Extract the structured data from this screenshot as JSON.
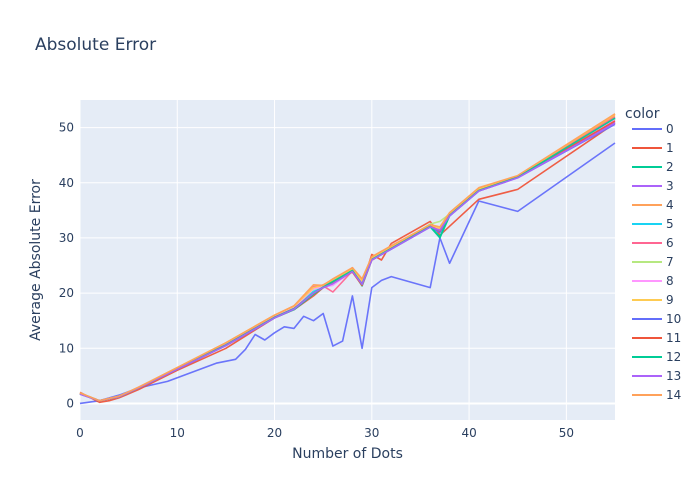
{
  "chart_data": {
    "type": "line",
    "title": "Absolute Error",
    "xlabel": "Number of Dots",
    "ylabel": "Average Absolute Error",
    "xlim": [
      0,
      55
    ],
    "ylim": [
      -3,
      55
    ],
    "xticks": [
      0,
      10,
      20,
      30,
      40,
      50
    ],
    "yticks": [
      0,
      10,
      20,
      30,
      40,
      50
    ],
    "grid": true,
    "legend": {
      "title": "color",
      "position": "right"
    },
    "series": [
      {
        "name": "0",
        "color": "#636efa",
        "x": [
          0,
          2,
          4,
          6,
          9,
          14,
          16,
          17,
          18,
          19,
          20,
          21,
          22,
          23,
          24,
          25,
          26,
          27,
          28,
          29,
          30,
          31,
          32,
          36,
          37,
          38,
          41,
          45,
          55
        ],
        "y": [
          0,
          0.5,
          1.5,
          2.8,
          4,
          7.3,
          8,
          9.8,
          12.5,
          11.5,
          12.8,
          13.9,
          13.6,
          15.8,
          15,
          16.3,
          10.4,
          11.3,
          19.5,
          10,
          21,
          22.3,
          23,
          21,
          30,
          25.4,
          36.7,
          34.8,
          47.2
        ]
      },
      {
        "name": "1",
        "color": "#EF553B",
        "x": [
          0,
          2,
          3,
          4,
          6,
          10,
          15,
          20,
          22,
          24,
          25,
          27,
          28,
          29,
          30,
          31,
          32,
          36,
          37,
          41,
          45,
          55
        ],
        "y": [
          2,
          0.2,
          0.5,
          1,
          2.5,
          6,
          10,
          15.5,
          17,
          19.5,
          21,
          22.7,
          24.6,
          21.5,
          27,
          26,
          29,
          33,
          30.5,
          37,
          38.8,
          50.8
        ]
      },
      {
        "name": "2",
        "color": "#00cc96",
        "x": [
          0,
          2,
          4,
          6,
          10,
          15,
          20,
          22,
          24,
          25,
          26,
          28,
          29,
          30,
          32,
          36,
          37,
          38,
          41,
          45,
          55
        ],
        "y": [
          1.8,
          0.5,
          1.2,
          2.8,
          6.2,
          10.5,
          15.5,
          17,
          19.8,
          21,
          22,
          24,
          21.3,
          26,
          28,
          32,
          30,
          34,
          38.5,
          41,
          51.8
        ]
      },
      {
        "name": "3",
        "color": "#ab63fa",
        "x": [
          0,
          2,
          4,
          6,
          10,
          15,
          20,
          22,
          24,
          25,
          26,
          28,
          29,
          30,
          32,
          36,
          37,
          38,
          41,
          45,
          55
        ],
        "y": [
          1.7,
          0.5,
          1.2,
          2.8,
          6.3,
          10.6,
          15.6,
          17.2,
          20,
          21.2,
          21.8,
          24,
          21.5,
          26,
          28,
          32,
          31.2,
          34,
          38.6,
          41,
          51
        ]
      },
      {
        "name": "4",
        "color": "#FFA15A",
        "x": [
          0,
          2,
          4,
          6,
          10,
          15,
          20,
          22,
          24,
          25,
          26,
          28,
          29,
          30,
          32,
          36,
          37,
          38,
          41,
          45,
          55
        ],
        "y": [
          1.9,
          0.5,
          1.3,
          2.9,
          6.5,
          11,
          16,
          17.7,
          21,
          21.5,
          22.5,
          24.5,
          22.5,
          26.5,
          28.5,
          32,
          31.5,
          34.5,
          39,
          41.2,
          52.2
        ]
      },
      {
        "name": "5",
        "color": "#19d3f3",
        "x": [
          0,
          2,
          4,
          6,
          10,
          15,
          20,
          22,
          24,
          25,
          26,
          28,
          29,
          30,
          32,
          36,
          37,
          38,
          41,
          45,
          55
        ],
        "y": [
          1.8,
          0.5,
          1.2,
          2.8,
          6.3,
          10.6,
          15.6,
          17.3,
          20.3,
          21,
          21.5,
          24,
          21.8,
          26.2,
          28.2,
          32.2,
          31,
          34.2,
          38.7,
          41,
          51.5
        ]
      },
      {
        "name": "6",
        "color": "#FF6692",
        "x": [
          0,
          2,
          4,
          6,
          10,
          15,
          20,
          22,
          24,
          25,
          26,
          28,
          29,
          30,
          32,
          36,
          37,
          38,
          41,
          45,
          55
        ],
        "y": [
          1.9,
          0.5,
          1.3,
          2.9,
          6.4,
          10.9,
          15.9,
          17.5,
          21.2,
          21.3,
          20.2,
          24,
          22.3,
          26.4,
          28.4,
          32.1,
          31.3,
          34.4,
          38.9,
          41.1,
          51.9
        ]
      },
      {
        "name": "7",
        "color": "#B6E880",
        "x": [
          0,
          2,
          4,
          6,
          10,
          15,
          20,
          22,
          24,
          25,
          26,
          28,
          29,
          30,
          32,
          36,
          37,
          38,
          41,
          45,
          55
        ],
        "y": [
          1.8,
          0.5,
          1.2,
          2.8,
          6.3,
          10.7,
          15.7,
          17.4,
          20.7,
          21.2,
          21.6,
          24.1,
          22,
          26.2,
          28.2,
          32.5,
          33,
          34.3,
          38.8,
          41,
          51.6
        ]
      },
      {
        "name": "8",
        "color": "#FF97FF",
        "x": [
          0,
          2,
          4,
          6,
          10,
          15,
          20,
          22,
          24,
          25,
          26,
          28,
          29,
          30,
          32,
          36,
          37,
          38,
          41,
          45,
          55
        ],
        "y": [
          1.8,
          0.5,
          1.2,
          2.8,
          6.3,
          10.7,
          15.7,
          17.4,
          20.8,
          21.1,
          21.4,
          24,
          22,
          26.1,
          28.1,
          32.1,
          31.1,
          34.1,
          38.6,
          40.9,
          51.4
        ]
      },
      {
        "name": "9",
        "color": "#FECB52",
        "x": [
          0,
          2,
          4,
          6,
          10,
          15,
          20,
          22,
          24,
          25,
          26,
          28,
          29,
          30,
          32,
          36,
          37,
          38,
          41,
          45,
          55
        ],
        "y": [
          1.9,
          0.5,
          1.3,
          2.9,
          6.5,
          11,
          16,
          17.6,
          21,
          21.4,
          22.2,
          24.3,
          22.2,
          26.3,
          28.3,
          32.3,
          31.8,
          34.4,
          38.9,
          41.2,
          52.4
        ]
      },
      {
        "name": "10",
        "color": "#636efa",
        "x": [
          0,
          2,
          4,
          6,
          10,
          15,
          20,
          22,
          24,
          25,
          26,
          28,
          29,
          30,
          32,
          36,
          37,
          38,
          41,
          45,
          55
        ],
        "y": [
          1.7,
          0.5,
          1.2,
          2.8,
          6.2,
          10.5,
          15.5,
          17.1,
          20,
          21,
          21.8,
          23.9,
          21.7,
          26,
          28,
          32,
          31,
          34,
          38.5,
          40.9,
          50.6
        ]
      },
      {
        "name": "11",
        "color": "#EF553B",
        "x": [
          0,
          2,
          4,
          6,
          10,
          15,
          20,
          22,
          24,
          25,
          26,
          28,
          29,
          30,
          32,
          36,
          37,
          38,
          41,
          45,
          55
        ],
        "y": [
          1.8,
          0.5,
          1.2,
          2.8,
          6.3,
          10.6,
          15.6,
          17.2,
          20,
          21,
          22,
          23.8,
          21.4,
          26,
          28.1,
          32.1,
          31.3,
          34.1,
          38.6,
          41,
          51.2
        ]
      },
      {
        "name": "12",
        "color": "#00cc96",
        "x": [
          0,
          2,
          4,
          6,
          10,
          15,
          20,
          22,
          24,
          25,
          26,
          28,
          29,
          30,
          32,
          36,
          37,
          38,
          41,
          45,
          55
        ],
        "y": [
          1.8,
          0.5,
          1.2,
          2.8,
          6.3,
          10.6,
          15.6,
          17.2,
          20,
          21.1,
          22.1,
          24.1,
          21.6,
          26.1,
          28.1,
          32.1,
          30.2,
          34.1,
          38.6,
          41,
          51.7
        ]
      },
      {
        "name": "13",
        "color": "#ab63fa",
        "x": [
          0,
          2,
          4,
          6,
          10,
          15,
          20,
          22,
          24,
          25,
          26,
          28,
          29,
          30,
          32,
          36,
          37,
          38,
          41,
          45,
          55
        ],
        "y": [
          1.7,
          0.5,
          1.2,
          2.8,
          6.2,
          10.5,
          15.5,
          17.1,
          20,
          21,
          21.7,
          23.9,
          21.6,
          26,
          28,
          32,
          31.4,
          34,
          38.5,
          40.9,
          50.8
        ]
      },
      {
        "name": "14",
        "color": "#FFA15A",
        "x": [
          0,
          2,
          4,
          6,
          10,
          15,
          20,
          22,
          24,
          25,
          26,
          28,
          29,
          30,
          32,
          36,
          37,
          38,
          41,
          45,
          55
        ],
        "y": [
          1.9,
          0.5,
          1.3,
          2.9,
          6.5,
          11,
          16,
          17.7,
          21.5,
          21.4,
          22.6,
          24.6,
          22.6,
          26.6,
          28.6,
          32.4,
          32,
          34.6,
          39.1,
          41.3,
          52.5
        ]
      }
    ]
  }
}
